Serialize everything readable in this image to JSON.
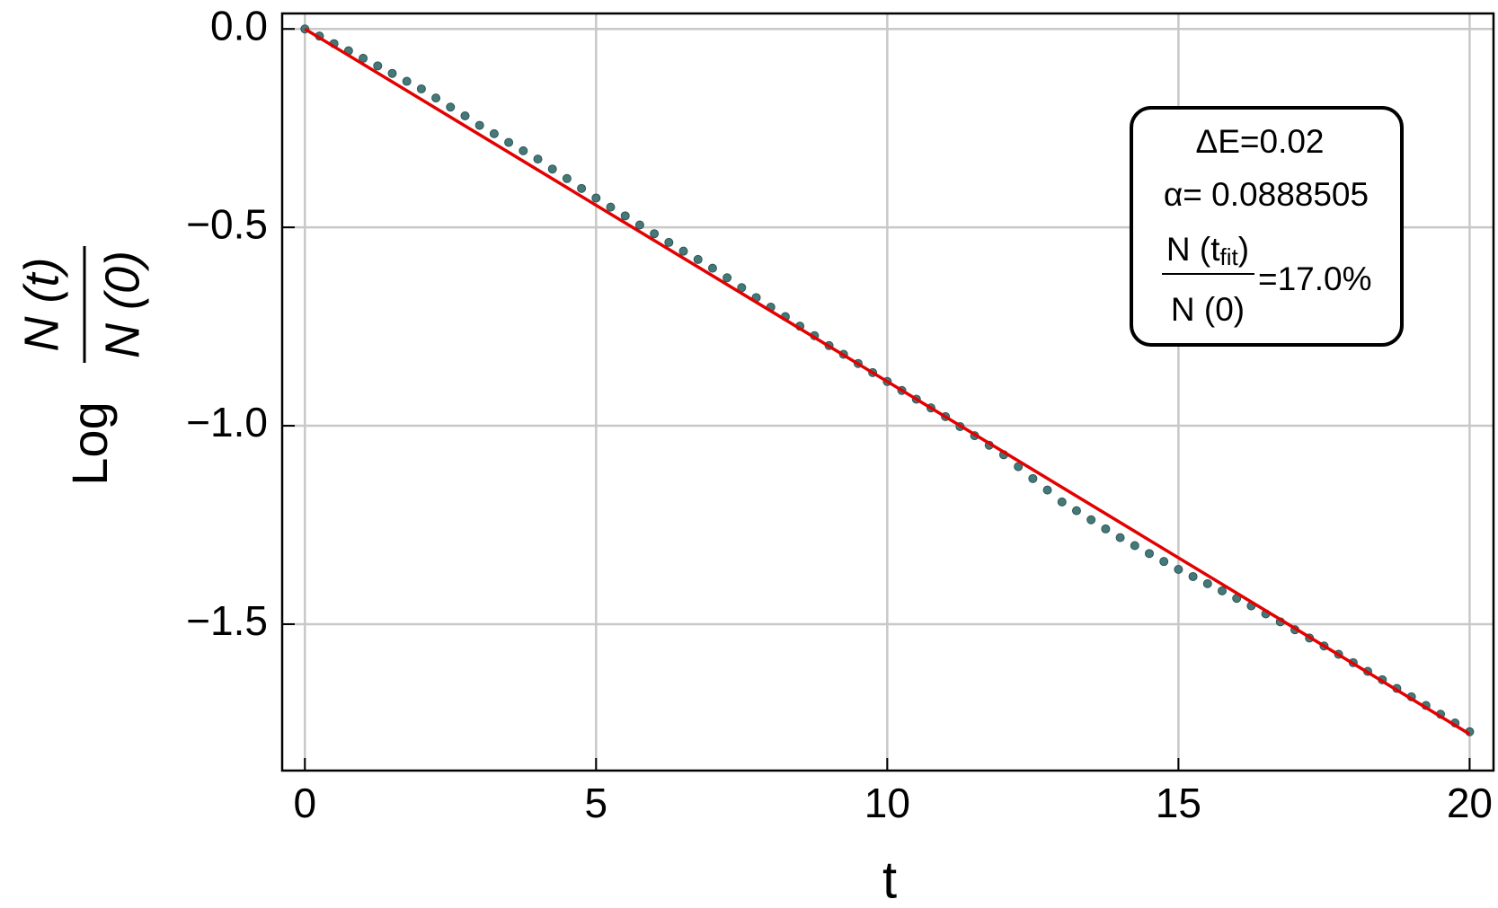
{
  "chart_data": {
    "type": "scatter",
    "xlabel": "t",
    "ylabel": {
      "prefix": "Log",
      "numerator": "N (t)",
      "denominator": "N (0)"
    },
    "xlim": [
      -0.39,
      20.41
    ],
    "ylim": [
      -1.869,
      0.039
    ],
    "xticks": [
      0,
      5,
      10,
      15,
      20
    ],
    "yticks": [
      {
        "value": 0,
        "label": "0.0"
      },
      {
        "value": -0.5,
        "label": "−0.5"
      },
      {
        "value": -1,
        "label": "−1.0"
      },
      {
        "value": -1.5,
        "label": "−1.5"
      }
    ],
    "grid": true,
    "annotation": {
      "lines": [
        "ΔE=0.02",
        "α= 0.0888505"
      ],
      "fraction": {
        "numerator": "N (t",
        "numerator_sub": "fit",
        "numerator_end": ")",
        "denominator": "N (0)",
        "value": "=17.0%"
      }
    },
    "series": [
      {
        "type": "scatter",
        "color": "#457878",
        "x": [
          0,
          0.25,
          0.5,
          0.75,
          1,
          1.25,
          1.5,
          1.75,
          2,
          2.25,
          2.5,
          2.75,
          3,
          3.25,
          3.5,
          3.75,
          4,
          4.25,
          4.5,
          4.75,
          5,
          5.25,
          5.5,
          5.75,
          6,
          6.25,
          6.5,
          6.75,
          7,
          7.25,
          7.5,
          7.75,
          8,
          8.25,
          8.5,
          8.75,
          9,
          9.25,
          9.5,
          9.75,
          10,
          10.25,
          10.5,
          10.75,
          11,
          11.25,
          11.5,
          11.75,
          12,
          12.25,
          12.5,
          12.75,
          13,
          13.25,
          13.5,
          13.75,
          14,
          14.25,
          14.5,
          14.75,
          15,
          15.25,
          15.5,
          15.75,
          16,
          16.25,
          16.5,
          16.75,
          17,
          17.25,
          17.5,
          17.75,
          18,
          18.25,
          18.5,
          18.75,
          19,
          19.25,
          19.5,
          19.75,
          20
        ],
        "values": [
          0,
          -0.018,
          -0.037,
          -0.055,
          -0.074,
          -0.093,
          -0.112,
          -0.132,
          -0.151,
          -0.174,
          -0.197,
          -0.219,
          -0.243,
          -0.264,
          -0.286,
          -0.307,
          -0.328,
          -0.353,
          -0.377,
          -0.402,
          -0.426,
          -0.449,
          -0.471,
          -0.494,
          -0.516,
          -0.538,
          -0.56,
          -0.581,
          -0.603,
          -0.627,
          -0.652,
          -0.677,
          -0.701,
          -0.725,
          -0.749,
          -0.773,
          -0.798,
          -0.82,
          -0.843,
          -0.866,
          -0.8885,
          -0.911,
          -0.933,
          -0.955,
          -0.977,
          -1.002,
          -1.025,
          -1.049,
          -1.073,
          -1.103,
          -1.133,
          -1.162,
          -1.192,
          -1.214,
          -1.237,
          -1.26,
          -1.282,
          -1.302,
          -1.322,
          -1.342,
          -1.362,
          -1.38,
          -1.398,
          -1.416,
          -1.435,
          -1.454,
          -1.474,
          -1.494,
          -1.514,
          -1.535,
          -1.555,
          -1.576,
          -1.597,
          -1.619,
          -1.64,
          -1.662,
          -1.683,
          -1.705,
          -1.727,
          -1.749,
          -1.771
        ]
      },
      {
        "type": "line",
        "color": "#e30000",
        "x": [
          0,
          20
        ],
        "values": [
          0,
          -1.777
        ]
      }
    ]
  }
}
